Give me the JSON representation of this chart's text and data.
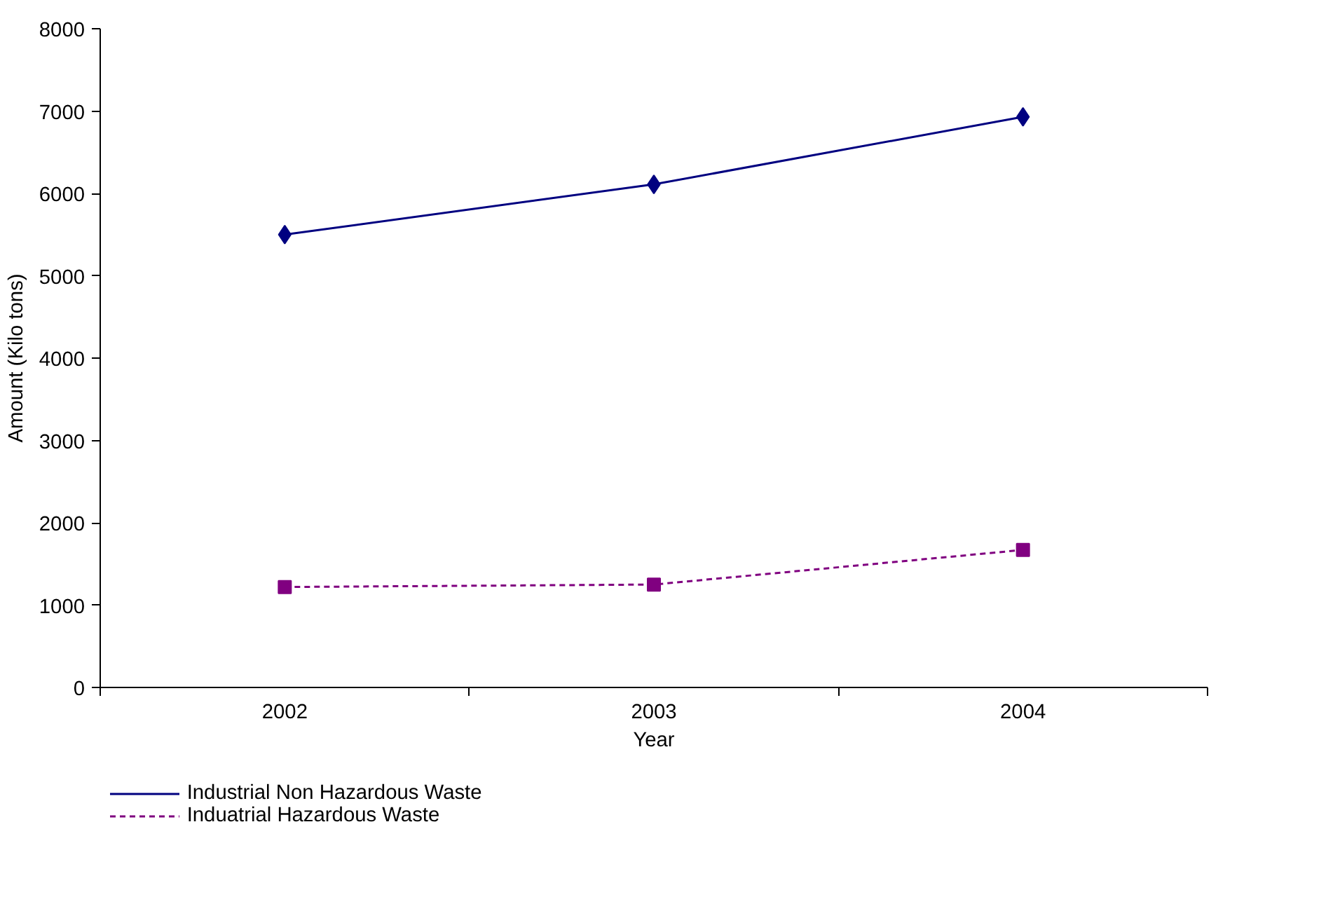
{
  "chart_data": {
    "type": "line",
    "xlabel": "Year",
    "ylabel": "Amount (Kilo tons)",
    "categories": [
      "2002",
      "2003",
      "2004"
    ],
    "series": [
      {
        "name": "Industrial Non Hazardous Waste",
        "color": "#000080",
        "values": [
          5500,
          6110,
          6930
        ],
        "marker": "diamond",
        "line_style": "solid"
      },
      {
        "name": "Induatrial Hazardous Waste",
        "color": "#800080",
        "values": [
          1220,
          1250,
          1670
        ],
        "marker": "square",
        "line_style": "dashed"
      }
    ],
    "ylim": [
      0,
      8000
    ],
    "yticks": [
      0,
      1000,
      2000,
      3000,
      4000,
      5000,
      6000,
      7000,
      8000
    ],
    "grid": false,
    "legend": "bottom"
  }
}
